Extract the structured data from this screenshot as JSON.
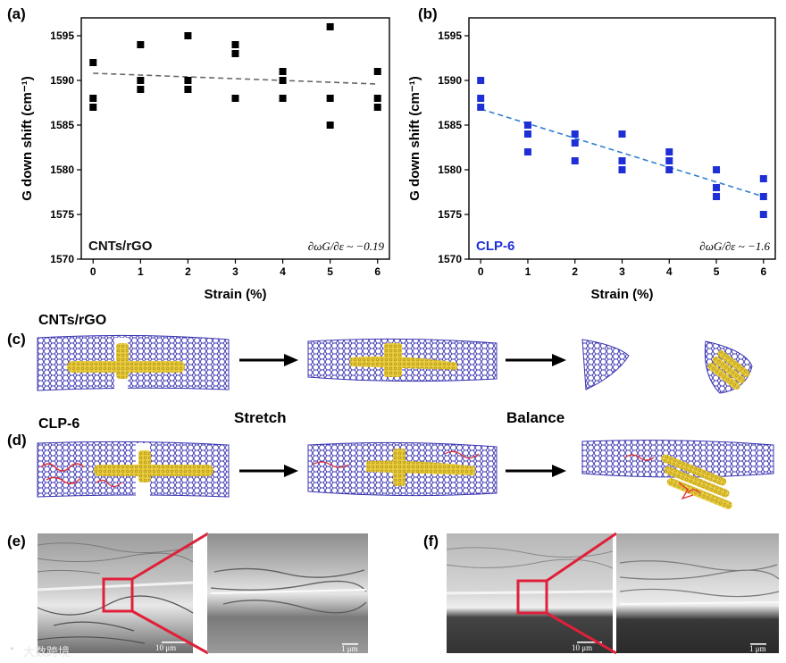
{
  "chart_data": [
    {
      "id": "a",
      "type": "scatter",
      "panel_label": "(a)",
      "sample_label": "CNTs/rGO",
      "formula": "∂ωG/∂ε ~ −0.19",
      "xlabel": "Strain (%)",
      "ylabel": "G down shift (cm⁻¹)",
      "xlim": [
        -0.25,
        6.25
      ],
      "ylim": [
        1570,
        1597
      ],
      "xticks": [
        0,
        1,
        2,
        3,
        4,
        5,
        6
      ],
      "yticks": [
        1570,
        1575,
        1580,
        1585,
        1590,
        1595
      ],
      "marker_color": "#000000",
      "trend_color": "#666666",
      "points": [
        [
          0,
          1592
        ],
        [
          0,
          1588
        ],
        [
          0,
          1587
        ],
        [
          1,
          1594
        ],
        [
          1,
          1590
        ],
        [
          1,
          1589
        ],
        [
          2,
          1595
        ],
        [
          2,
          1590
        ],
        [
          2,
          1589
        ],
        [
          3,
          1594
        ],
        [
          3,
          1593
        ],
        [
          3,
          1588
        ],
        [
          4,
          1591
        ],
        [
          4,
          1590
        ],
        [
          4,
          1588
        ],
        [
          5,
          1596
        ],
        [
          5,
          1588
        ],
        [
          5,
          1585
        ],
        [
          6,
          1591
        ],
        [
          6,
          1588
        ],
        [
          6,
          1587
        ]
      ],
      "trend": [
        [
          0,
          1590.8
        ],
        [
          6,
          1589.6
        ]
      ]
    },
    {
      "id": "b",
      "type": "scatter",
      "panel_label": "(b)",
      "sample_label": "CLP-6",
      "formula": "∂ωG/∂ε ~ −1.6",
      "xlabel": "Strain (%)",
      "ylabel": "G down shift (cm⁻¹)",
      "xlim": [
        -0.25,
        6.25
      ],
      "ylim": [
        1570,
        1597
      ],
      "xticks": [
        0,
        1,
        2,
        3,
        4,
        5,
        6
      ],
      "yticks": [
        1570,
        1575,
        1580,
        1585,
        1590,
        1595
      ],
      "marker_color": "#1f2fd6",
      "trend_color": "#2f7fd0",
      "points": [
        [
          0,
          1590
        ],
        [
          0,
          1588
        ],
        [
          0,
          1587
        ],
        [
          1,
          1585
        ],
        [
          1,
          1584
        ],
        [
          1,
          1582
        ],
        [
          2,
          1584
        ],
        [
          2,
          1583
        ],
        [
          2,
          1581
        ],
        [
          3,
          1584
        ],
        [
          3,
          1581
        ],
        [
          3,
          1580
        ],
        [
          4,
          1582
        ],
        [
          4,
          1581
        ],
        [
          4,
          1580
        ],
        [
          5,
          1580
        ],
        [
          5,
          1578
        ],
        [
          5,
          1577
        ],
        [
          6,
          1579
        ],
        [
          6,
          1577
        ],
        [
          6,
          1575
        ]
      ],
      "trend": [
        [
          0,
          1586.8
        ],
        [
          6,
          1577.0
        ]
      ]
    }
  ],
  "schematics": {
    "c": {
      "panel_label": "(c)",
      "sample_label": "CNTs/rGO"
    },
    "d": {
      "panel_label": "(d)",
      "sample_label": "CLP-6"
    },
    "stretch_label": "Stretch",
    "balance_label": "Balance"
  },
  "micrographs": {
    "e": {
      "panel_label": "(e)",
      "scale_left": "10 μm",
      "scale_right": "1 μm"
    },
    "f": {
      "panel_label": "(f)",
      "scale_left": "10 μm",
      "scale_right": "1 μm"
    }
  },
  "watermark": "大数跨境",
  "colors": {
    "sheet": "#3a35b0",
    "tube": "#e2c235",
    "polymer": "#e03030",
    "arrow": "#000000",
    "zoom_frame": "#e0203a",
    "sem_dark": "#5a5a5a",
    "sem_light": "#bdbdbd"
  }
}
